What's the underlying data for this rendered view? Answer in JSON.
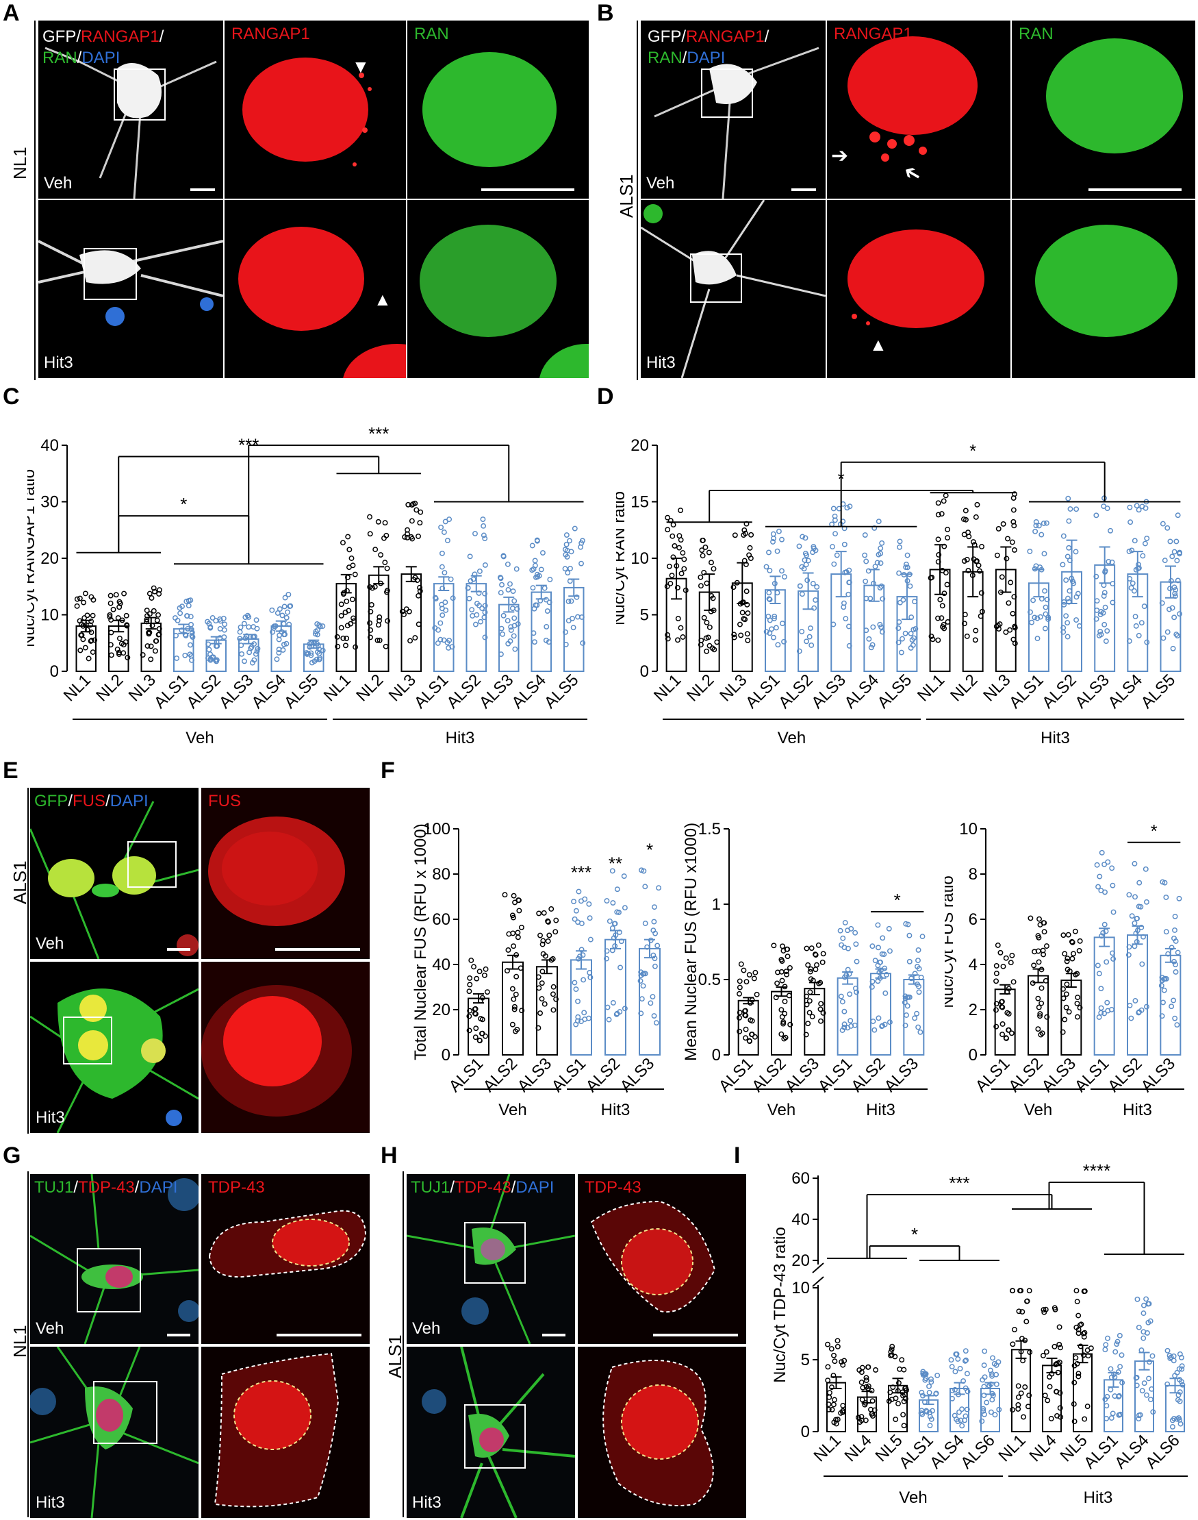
{
  "panels": {
    "A": {
      "letter": "A",
      "row_label": "NL1",
      "ch1": [
        "GFP",
        "/",
        "RANGAP1",
        "/",
        "RAN",
        "/",
        "DAPI"
      ],
      "ch2": "RANGAP1",
      "ch3": "RAN",
      "cond_top": "Veh",
      "cond_bottom": "Hit3"
    },
    "B": {
      "letter": "B",
      "row_label": "ALS1",
      "ch1": [
        "GFP",
        "/",
        "RANGAP1",
        "/",
        "RAN",
        "/",
        "DAPI"
      ],
      "ch2": "RANGAP1",
      "ch3": "RAN",
      "cond_top": "Veh",
      "cond_bottom": "Hit3"
    },
    "C": {
      "letter": "C"
    },
    "D": {
      "letter": "D"
    },
    "E": {
      "letter": "E",
      "row_label": "ALS1",
      "ch1": [
        "GFP",
        "/",
        "FUS",
        "/",
        "DAPI"
      ],
      "ch2": "FUS",
      "cond_top": "Veh",
      "cond_bottom": "Hit3"
    },
    "F": {
      "letter": "F"
    },
    "G": {
      "letter": "G",
      "row_label": "NL1",
      "ch1": [
        "TUJ1",
        "/",
        "TDP-43",
        "/",
        "DAPI"
      ],
      "ch2": "TDP-43",
      "cond_top": "Veh",
      "cond_bottom": "Hit3"
    },
    "H": {
      "letter": "H",
      "row_label": "ALS1",
      "ch1": [
        "TUJ1",
        "/",
        "TDP-43",
        "/",
        "DAPI"
      ],
      "ch2": "TDP-43",
      "cond_top": "Veh",
      "cond_bottom": "Hit3"
    },
    "I": {
      "letter": "I"
    }
  },
  "colors": {
    "black": "#000000",
    "blue": "#5b8cc6",
    "red": "#e8141a",
    "green": "#2db82d",
    "dapi": "#2f6fd6"
  },
  "chart_data": [
    {
      "id": "C",
      "type": "bar",
      "ylabel": "Nuc/Cyt RANGAP1 ratio",
      "ylim": [
        0,
        40
      ],
      "yticks": [
        0,
        10,
        20,
        30,
        40
      ],
      "categories": [
        "NL1",
        "NL2",
        "NL3",
        "ALS1",
        "ALS2",
        "ALS3",
        "ALS4",
        "ALS5",
        "NL1",
        "NL2",
        "NL3",
        "ALS1",
        "ALS2",
        "ALS3",
        "ALS4",
        "ALS5"
      ],
      "values": [
        8.0,
        8.0,
        8.5,
        7.5,
        5.5,
        5.7,
        8.0,
        4.8,
        15.5,
        17.0,
        17.2,
        15.5,
        15.5,
        11.8,
        14.0,
        14.8
      ],
      "errors": [
        1.0,
        1.0,
        1.0,
        0.8,
        0.6,
        0.8,
        0.9,
        0.7,
        1.6,
        1.5,
        1.3,
        1.2,
        1.4,
        1.3,
        1.2,
        1.5
      ],
      "colors": [
        "black",
        "black",
        "black",
        "blue",
        "blue",
        "blue",
        "blue",
        "blue",
        "black",
        "black",
        "black",
        "blue",
        "blue",
        "blue",
        "blue",
        "blue"
      ],
      "groups": [
        {
          "label": "Veh",
          "from": 0,
          "to": 7
        },
        {
          "label": "Hit3",
          "from": 8,
          "to": 15
        }
      ],
      "significance": [
        "***",
        "*",
        "***"
      ]
    },
    {
      "id": "D",
      "type": "bar",
      "ylabel": "Nuc/Cyt RAN ratio",
      "ylim": [
        0,
        20
      ],
      "yticks": [
        0,
        5,
        10,
        15,
        20
      ],
      "categories": [
        "NL1",
        "NL2",
        "NL3",
        "ALS1",
        "ALS2",
        "ALS3",
        "ALS4",
        "ALS5",
        "NL1",
        "NL2",
        "NL3",
        "ALS1",
        "ALS2",
        "ALS3",
        "ALS4",
        "ALS5"
      ],
      "values": [
        8.2,
        7.0,
        7.8,
        7.2,
        7.1,
        8.6,
        7.6,
        6.6,
        9.0,
        8.8,
        9.0,
        7.8,
        8.8,
        9.4,
        8.6,
        7.9
      ],
      "errors": [
        1.8,
        1.6,
        1.8,
        1.2,
        1.6,
        2.0,
        1.4,
        2.0,
        2.2,
        2.2,
        2.0,
        1.2,
        2.8,
        1.6,
        2.0,
        1.4
      ],
      "colors": [
        "black",
        "black",
        "black",
        "blue",
        "blue",
        "blue",
        "blue",
        "blue",
        "black",
        "black",
        "black",
        "blue",
        "blue",
        "blue",
        "blue",
        "blue"
      ],
      "groups": [
        {
          "label": "Veh",
          "from": 0,
          "to": 7
        },
        {
          "label": "Hit3",
          "from": 8,
          "to": 15
        }
      ],
      "significance": [
        "*",
        "*"
      ]
    },
    {
      "id": "F1",
      "type": "bar",
      "ylabel": "Total Nuclear FUS (RFU x 1000)",
      "ylim": [
        0,
        100
      ],
      "yticks": [
        0,
        20,
        40,
        60,
        80,
        100
      ],
      "categories": [
        "ALS1",
        "ALS2",
        "ALS3",
        "ALS1",
        "ALS2",
        "ALS3"
      ],
      "values": [
        25,
        41,
        39,
        42,
        51,
        47
      ],
      "errors": [
        2,
        3,
        3,
        4,
        4,
        4
      ],
      "colors": [
        "black",
        "black",
        "black",
        "blue",
        "blue",
        "blue"
      ],
      "groups": [
        {
          "label": "Veh",
          "from": 0,
          "to": 2
        },
        {
          "label": "Hit3",
          "from": 3,
          "to": 5
        }
      ],
      "significance": [
        "***",
        "**",
        "*"
      ]
    },
    {
      "id": "F2",
      "type": "bar",
      "ylabel": "Mean Nuclear FUS (RFU x1000)",
      "ylim": [
        0,
        1.5
      ],
      "yticks": [
        0,
        0.5,
        1,
        1.5
      ],
      "categories": [
        "ALS1",
        "ALS2",
        "ALS3",
        "ALS1",
        "ALS2",
        "ALS3"
      ],
      "values": [
        0.36,
        0.42,
        0.44,
        0.51,
        0.54,
        0.5
      ],
      "errors": [
        0.02,
        0.03,
        0.04,
        0.04,
        0.03,
        0.03
      ],
      "colors": [
        "black",
        "black",
        "black",
        "blue",
        "blue",
        "blue"
      ],
      "groups": [
        {
          "label": "Veh",
          "from": 0,
          "to": 2
        },
        {
          "label": "Hit3",
          "from": 3,
          "to": 5
        }
      ],
      "significance": [
        "*"
      ]
    },
    {
      "id": "F3",
      "type": "bar",
      "ylabel": "Nuc/Cyt FUS ratio",
      "ylim": [
        0,
        10
      ],
      "yticks": [
        0,
        2,
        4,
        6,
        8,
        10
      ],
      "categories": [
        "ALS1",
        "ALS2",
        "ALS3",
        "ALS1",
        "ALS2",
        "ALS3"
      ],
      "values": [
        2.9,
        3.5,
        3.3,
        5.2,
        5.3,
        4.4
      ],
      "errors": [
        0.2,
        0.3,
        0.3,
        0.4,
        0.4,
        0.3
      ],
      "colors": [
        "black",
        "black",
        "black",
        "blue",
        "blue",
        "blue"
      ],
      "groups": [
        {
          "label": "Veh",
          "from": 0,
          "to": 2
        },
        {
          "label": "Hit3",
          "from": 3,
          "to": 5
        }
      ],
      "significance": [
        "*"
      ]
    },
    {
      "id": "I",
      "type": "bar",
      "ylabel": "Nuc/Cyt TDP-43 ratio",
      "ylim": [
        0,
        60
      ],
      "yticks": [
        0,
        5,
        10,
        20,
        40,
        60
      ],
      "categories": [
        "NL1",
        "NL4",
        "NL5",
        "ALS1",
        "ALS4",
        "ALS6",
        "NL1",
        "NL4",
        "NL5",
        "ALS1",
        "ALS4",
        "ALS6"
      ],
      "values": [
        3.4,
        2.4,
        3.2,
        2.2,
        3.0,
        3.0,
        5.7,
        4.6,
        5.4,
        3.6,
        4.9,
        3.2
      ],
      "errors": [
        0.4,
        0.4,
        0.5,
        0.3,
        0.4,
        0.4,
        0.6,
        0.5,
        0.6,
        0.5,
        0.6,
        0.5
      ],
      "colors": [
        "black",
        "black",
        "black",
        "blue",
        "blue",
        "blue",
        "black",
        "black",
        "black",
        "blue",
        "blue",
        "blue"
      ],
      "groups": [
        {
          "label": "Veh",
          "from": 0,
          "to": 5
        },
        {
          "label": "Hit3",
          "from": 6,
          "to": 11
        }
      ],
      "significance": [
        "***",
        "****",
        "*"
      ]
    }
  ]
}
